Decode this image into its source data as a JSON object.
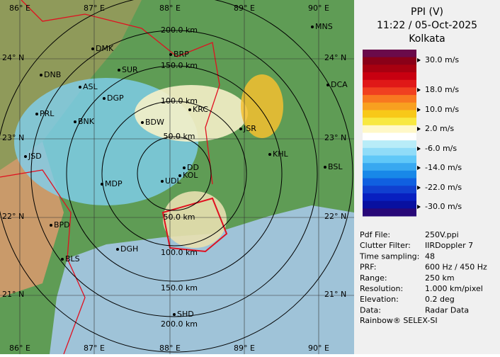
{
  "header": {
    "title": "PPI (V)",
    "datetime": "11:22 / 05-Oct-2025",
    "location": "Kolkata"
  },
  "legend": {
    "labels": [
      "30.0 m/s",
      "18.0 m/s",
      "10.0 m/s",
      "2.0 m/s",
      "-6.0 m/s",
      "-14.0 m/s",
      "-22.0 m/s",
      "-30.0 m/s"
    ]
  },
  "info": [
    {
      "label": "Pdf File:",
      "value": "250V.ppi"
    },
    {
      "label": "Clutter Filter:",
      "value": "IIRDoppler 7"
    },
    {
      "label": "Time sampling:",
      "value": "48"
    },
    {
      "label": "PRF:",
      "value": "600 Hz / 450 Hz"
    },
    {
      "label": "Range:",
      "value": "250 km"
    },
    {
      "label": "Resolution:",
      "value": "1.000 km/pixel"
    },
    {
      "label": "Elevation:",
      "value": "0.2 deg"
    },
    {
      "label": "Data:",
      "value": "Radar Data"
    }
  ],
  "footer": "Rainbow® SELEX-SI",
  "map": {
    "latitudes": [
      "24° N",
      "23° N",
      "22° N",
      "21° N"
    ],
    "longitudes": [
      "86° E",
      "87° E",
      "88° E",
      "89° E",
      "90° E"
    ],
    "range_rings": [
      "50.0 km",
      "100.0 km",
      "150.0 km",
      "200.0 km"
    ],
    "cities": [
      "MNS",
      "DMK",
      "BRP",
      "DNB",
      "SUR",
      "ASL",
      "DCA",
      "DGP",
      "KRC",
      "PRL",
      "BNK",
      "BDW",
      "JSR",
      "KHL",
      "JSD",
      "DD",
      "BSL",
      "KOL",
      "UDL",
      "MDP",
      "BPD",
      "DGH",
      "BLS",
      "SHD"
    ]
  }
}
